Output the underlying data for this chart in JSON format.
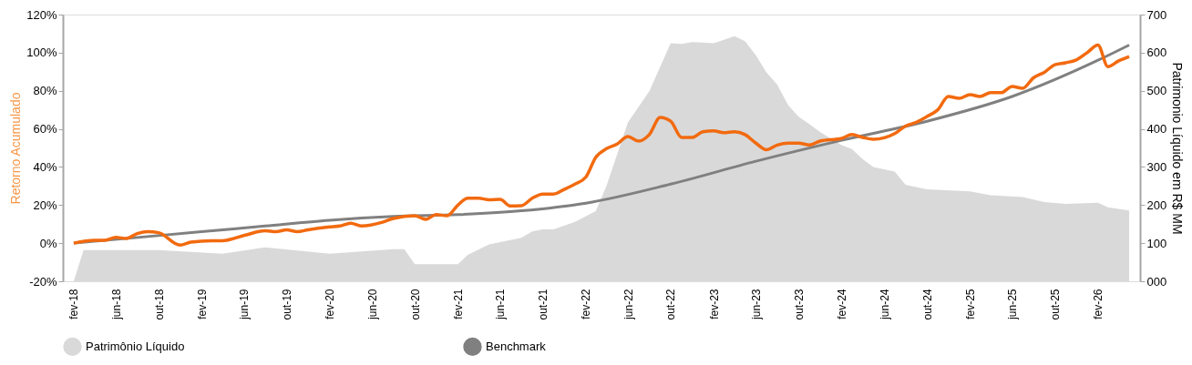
{
  "chart_data": {
    "type": "line",
    "ylabel": "Retorno Acumulado",
    "y2label": "Patrimonio Líquido em R$ MM",
    "xlim": [
      "2018-01",
      "2026-06"
    ],
    "xticks": [
      {
        "value": "2018-02",
        "label": "fev-18"
      },
      {
        "value": "2018-06",
        "label": "jun-18"
      },
      {
        "value": "2018-10",
        "label": "out-18"
      },
      {
        "value": "2019-02",
        "label": "fev-19"
      },
      {
        "value": "2019-06",
        "label": "jun-19"
      },
      {
        "value": "2019-10",
        "label": "out-19"
      },
      {
        "value": "2020-02",
        "label": "fev-20"
      },
      {
        "value": "2020-06",
        "label": "jun-20"
      },
      {
        "value": "2020-10",
        "label": "out-20"
      },
      {
        "value": "2021-02",
        "label": "fev-21"
      },
      {
        "value": "2021-06",
        "label": "jun-21"
      },
      {
        "value": "2021-10",
        "label": "out-21"
      },
      {
        "value": "2022-02",
        "label": "fev-22"
      },
      {
        "value": "2022-06",
        "label": "jun-22"
      },
      {
        "value": "2022-10",
        "label": "out-22"
      },
      {
        "value": "2023-02",
        "label": "fev-23"
      },
      {
        "value": "2023-06",
        "label": "jun-23"
      },
      {
        "value": "2023-10",
        "label": "out-23"
      },
      {
        "value": "2024-02",
        "label": "fev-24"
      },
      {
        "value": "2024-06",
        "label": "jun-24"
      },
      {
        "value": "2024-10",
        "label": "out-24"
      },
      {
        "value": "2025-02",
        "label": "fev-25"
      },
      {
        "value": "2025-06",
        "label": "jun-25"
      },
      {
        "value": "2025-10",
        "label": "out-25"
      },
      {
        "value": "2026-02",
        "label": "fev-26"
      }
    ],
    "ylim": [
      -20,
      120
    ],
    "yticks": [
      {
        "value": -20,
        "label": "-20%"
      },
      {
        "value": 0,
        "label": "0%"
      },
      {
        "value": 20,
        "label": "20%"
      },
      {
        "value": 40,
        "label": "40%"
      },
      {
        "value": 60,
        "label": "60%"
      },
      {
        "value": 80,
        "label": "80%"
      },
      {
        "value": 100,
        "label": "100%"
      },
      {
        "value": 120,
        "label": "120%"
      }
    ],
    "y2lim": [
      0,
      700
    ],
    "y2ticks": [
      {
        "value": 0,
        "label": "000"
      },
      {
        "value": 100,
        "label": "100"
      },
      {
        "value": 200,
        "label": "200"
      },
      {
        "value": 300,
        "label": "300"
      },
      {
        "value": 400,
        "label": "400"
      },
      {
        "value": 500,
        "label": "500"
      },
      {
        "value": 600,
        "label": "600"
      },
      {
        "value": 700,
        "label": "700"
      }
    ],
    "legend": "bottom",
    "grid": false,
    "line_style": "solid",
    "marker": "none",
    "series": [
      {
        "name": "Patrimônio Líquido",
        "type": "area",
        "axis": "y2",
        "color": "#d9d9d9",
        "x": [
          "2018-02",
          "2018-03",
          "2018-10",
          "2019-04",
          "2019-08",
          "2020-02",
          "2020-08",
          "2020-09",
          "2020-10",
          "2021-02",
          "2021-03",
          "2021-05",
          "2021-08",
          "2021-09",
          "2021-10",
          "2021-11",
          "2022-01",
          "2022-03",
          "2022-04",
          "2022-06",
          "2022-08",
          "2022-10",
          "2022-11",
          "2022-12",
          "2023-02",
          "2023-04",
          "2023-05",
          "2023-06",
          "2023-07",
          "2023-08",
          "2023-09",
          "2023-10",
          "2023-11",
          "2023-12",
          "2024-02",
          "2024-03",
          "2024-04",
          "2024-05",
          "2024-07",
          "2024-08",
          "2024-10",
          "2025-02",
          "2025-04",
          "2025-07",
          "2025-09",
          "2025-11",
          "2026-02",
          "2026-03",
          "2026-05"
        ],
        "values": [
          0,
          82,
          82,
          72,
          89,
          72,
          84,
          84,
          45,
          45,
          69,
          97,
          114,
          131,
          136,
          136,
          156,
          184,
          251,
          417,
          499,
          625,
          623,
          628,
          625,
          643,
          630,
          593,
          548,
          516,
          462,
          432,
          412,
          392,
          357,
          347,
          320,
          300,
          288,
          253,
          241,
          236,
          226,
          221,
          208,
          203,
          206,
          194,
          186
        ]
      },
      {
        "name": "Benchmark",
        "color": "#808080",
        "x": [
          "2018-02",
          "2019-02",
          "2019-08",
          "2020-02",
          "2020-08",
          "2021-02",
          "2021-08",
          "2022-02",
          "2022-10",
          "2023-06",
          "2024-02",
          "2024-10",
          "2025-06",
          "2026-02",
          "2026-05"
        ],
        "values": [
          0,
          6,
          9,
          12,
          14,
          15,
          17,
          21,
          31,
          43,
          54,
          64,
          77,
          96,
          104
        ]
      },
      {
        "color": "#f26a0f",
        "x": [
          "2018-02",
          "2018-04",
          "2018-05",
          "2018-06",
          "2018-07",
          "2018-08",
          "2018-09",
          "2018-10",
          "2018-12",
          "2019-01",
          "2019-03",
          "2019-04",
          "2019-06",
          "2019-08",
          "2019-09",
          "2019-10",
          "2019-11",
          "2019-12",
          "2020-02",
          "2020-03",
          "2020-04",
          "2020-05",
          "2020-07",
          "2020-08",
          "2020-10",
          "2020-11",
          "2020-12",
          "2021-01",
          "2021-02",
          "2021-03",
          "2021-04",
          "2021-05",
          "2021-06",
          "2021-07",
          "2021-08",
          "2021-09",
          "2021-10",
          "2021-11",
          "2021-12",
          "2022-01",
          "2022-02",
          "2022-03",
          "2022-04",
          "2022-05",
          "2022-06",
          "2022-07",
          "2022-08",
          "2022-09",
          "2022-10",
          "2022-11",
          "2022-12",
          "2023-01",
          "2023-02",
          "2023-03",
          "2023-04",
          "2023-05",
          "2023-06",
          "2023-07",
          "2023-08",
          "2023-09",
          "2023-10",
          "2023-11",
          "2023-12",
          "2024-02",
          "2024-03",
          "2024-04",
          "2024-05",
          "2024-07",
          "2024-08",
          "2024-09",
          "2024-10",
          "2024-11",
          "2024-12",
          "2025-01",
          "2025-02",
          "2025-03",
          "2025-04",
          "2025-05",
          "2025-06",
          "2025-07",
          "2025-08",
          "2025-09",
          "2025-10",
          "2025-11",
          "2025-12",
          "2026-01",
          "2026-02",
          "2026-03",
          "2026-04",
          "2026-05"
        ],
        "values": [
          0,
          1.5,
          1.5,
          3,
          2.5,
          5,
          6,
          5.5,
          -1,
          0.5,
          1.3,
          1.3,
          4,
          6.5,
          6,
          7,
          6,
          7,
          8.5,
          9,
          10.5,
          9,
          11,
          13,
          14.4,
          12.5,
          15,
          14.4,
          20,
          23.6,
          23.6,
          22.8,
          23,
          19.5,
          19.7,
          23.6,
          25.8,
          25.8,
          28.2,
          31,
          34.7,
          45,
          49.6,
          52,
          56,
          53.6,
          57,
          66,
          64,
          55.5,
          55.5,
          58.5,
          59,
          58,
          58.5,
          57,
          52.5,
          49,
          51.5,
          52.5,
          52.5,
          51.5,
          53.6,
          55,
          57,
          55.5,
          54.5,
          57.5,
          61.5,
          63.5,
          66.5,
          70,
          77,
          76,
          78,
          77,
          79,
          79,
          82.3,
          81.3,
          86.8,
          89.7,
          93.7,
          94.7,
          96.2,
          100,
          104,
          92.7,
          95.7,
          98
        ]
      }
    ]
  }
}
